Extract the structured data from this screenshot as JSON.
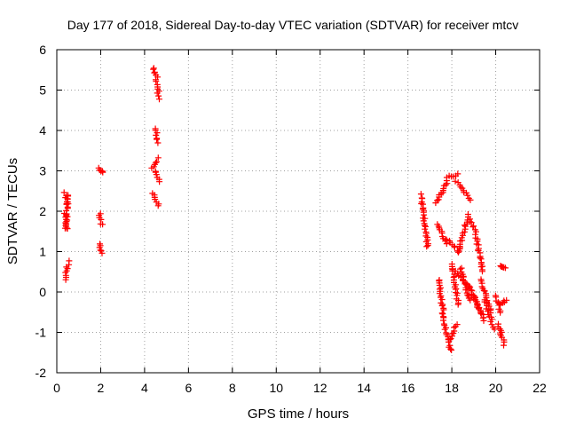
{
  "chart_data": {
    "type": "scatter",
    "title": "Day 177 of 2018, Sidereal Day-to-day VTEC variation (SDTVAR) for receiver mtcv",
    "xlabel": "GPS time / hours",
    "ylabel": "SDTVAR / TECUs",
    "xlim": [
      0,
      22
    ],
    "ylim": [
      -2,
      6
    ],
    "xticks": [
      0,
      2,
      4,
      6,
      8,
      10,
      12,
      14,
      16,
      18,
      20,
      22
    ],
    "yticks": [
      -2,
      -1,
      0,
      1,
      2,
      3,
      4,
      5,
      6
    ],
    "grid": true,
    "marker": "+",
    "color": "#ff0000",
    "segments": [
      {
        "x0": 0.38,
        "x1": 0.52,
        "y0": 2.45,
        "y1": 2.2
      },
      {
        "x0": 0.38,
        "x1": 0.48,
        "y0": 1.95,
        "y1": 1.55
      },
      {
        "x0": 0.42,
        "x1": 0.52,
        "y0": 1.6,
        "y1": 2.4
      },
      {
        "x0": 0.38,
        "x1": 0.52,
        "y0": 0.3,
        "y1": 0.75
      },
      {
        "x0": 1.95,
        "x1": 2.05,
        "y0": 3.05,
        "y1": 2.95
      },
      {
        "x0": 1.95,
        "x1": 2.05,
        "y0": 1.95,
        "y1": 1.65
      },
      {
        "x0": 1.95,
        "x1": 2.05,
        "y0": 1.2,
        "y1": 0.95
      },
      {
        "x0": 4.4,
        "x1": 4.55,
        "y0": 5.55,
        "y1": 5.3
      },
      {
        "x0": 4.55,
        "x1": 4.65,
        "y0": 5.25,
        "y1": 4.8
      },
      {
        "x0": 4.5,
        "x1": 4.6,
        "y0": 4.05,
        "y1": 3.7
      },
      {
        "x0": 4.35,
        "x1": 4.65,
        "y0": 3.05,
        "y1": 3.3
      },
      {
        "x0": 4.5,
        "x1": 4.65,
        "y0": 3.0,
        "y1": 2.75
      },
      {
        "x0": 4.4,
        "x1": 4.65,
        "y0": 2.45,
        "y1": 2.15
      },
      {
        "x0": 16.6,
        "x1": 16.9,
        "y0": 2.4,
        "y1": 1.1
      },
      {
        "x0": 17.3,
        "x1": 17.8,
        "y0": 2.2,
        "y1": 2.75
      },
      {
        "x0": 17.8,
        "x1": 18.3,
        "y0": 2.85,
        "y1": 2.9
      },
      {
        "x0": 18.2,
        "x1": 18.8,
        "y0": 2.75,
        "y1": 2.3
      },
      {
        "x0": 17.35,
        "x1": 17.75,
        "y0": 1.7,
        "y1": 1.2
      },
      {
        "x0": 17.8,
        "x1": 18.3,
        "y0": 1.3,
        "y1": 1.0
      },
      {
        "x0": 18.3,
        "x1": 18.7,
        "y0": 1.0,
        "y1": 1.8
      },
      {
        "x0": 18.7,
        "x1": 19.1,
        "y0": 1.9,
        "y1": 1.5
      },
      {
        "x0": 19.1,
        "x1": 19.4,
        "y0": 1.4,
        "y1": 0.5
      },
      {
        "x0": 17.4,
        "x1": 17.65,
        "y0": 0.3,
        "y1": -0.7
      },
      {
        "x0": 17.65,
        "x1": 17.95,
        "y0": -0.8,
        "y1": -1.45
      },
      {
        "x0": 17.95,
        "x1": 18.2,
        "y0": -1.2,
        "y1": -0.8
      },
      {
        "x0": 18.0,
        "x1": 18.3,
        "y0": 0.7,
        "y1": -0.3
      },
      {
        "x0": 18.2,
        "x1": 18.8,
        "y0": 0.5,
        "y1": 0.1
      },
      {
        "x0": 18.4,
        "x1": 18.8,
        "y0": 0.6,
        "y1": -0.2
      },
      {
        "x0": 18.8,
        "x1": 19.3,
        "y0": 0.1,
        "y1": -0.5
      },
      {
        "x0": 19.0,
        "x1": 19.5,
        "y0": -0.1,
        "y1": -0.7
      },
      {
        "x0": 19.3,
        "x1": 19.8,
        "y0": 0.3,
        "y1": -0.5
      },
      {
        "x0": 19.5,
        "x1": 19.9,
        "y0": -0.2,
        "y1": -0.9
      },
      {
        "x0": 20.0,
        "x1": 20.25,
        "y0": -0.1,
        "y1": -0.5
      },
      {
        "x0": 20.2,
        "x1": 20.45,
        "y0": -0.3,
        "y1": -0.2
      },
      {
        "x0": 20.1,
        "x1": 20.4,
        "y0": -0.8,
        "y1": -1.3
      },
      {
        "x0": 20.2,
        "x1": 20.4,
        "y0": 0.65,
        "y1": 0.62
      }
    ]
  }
}
